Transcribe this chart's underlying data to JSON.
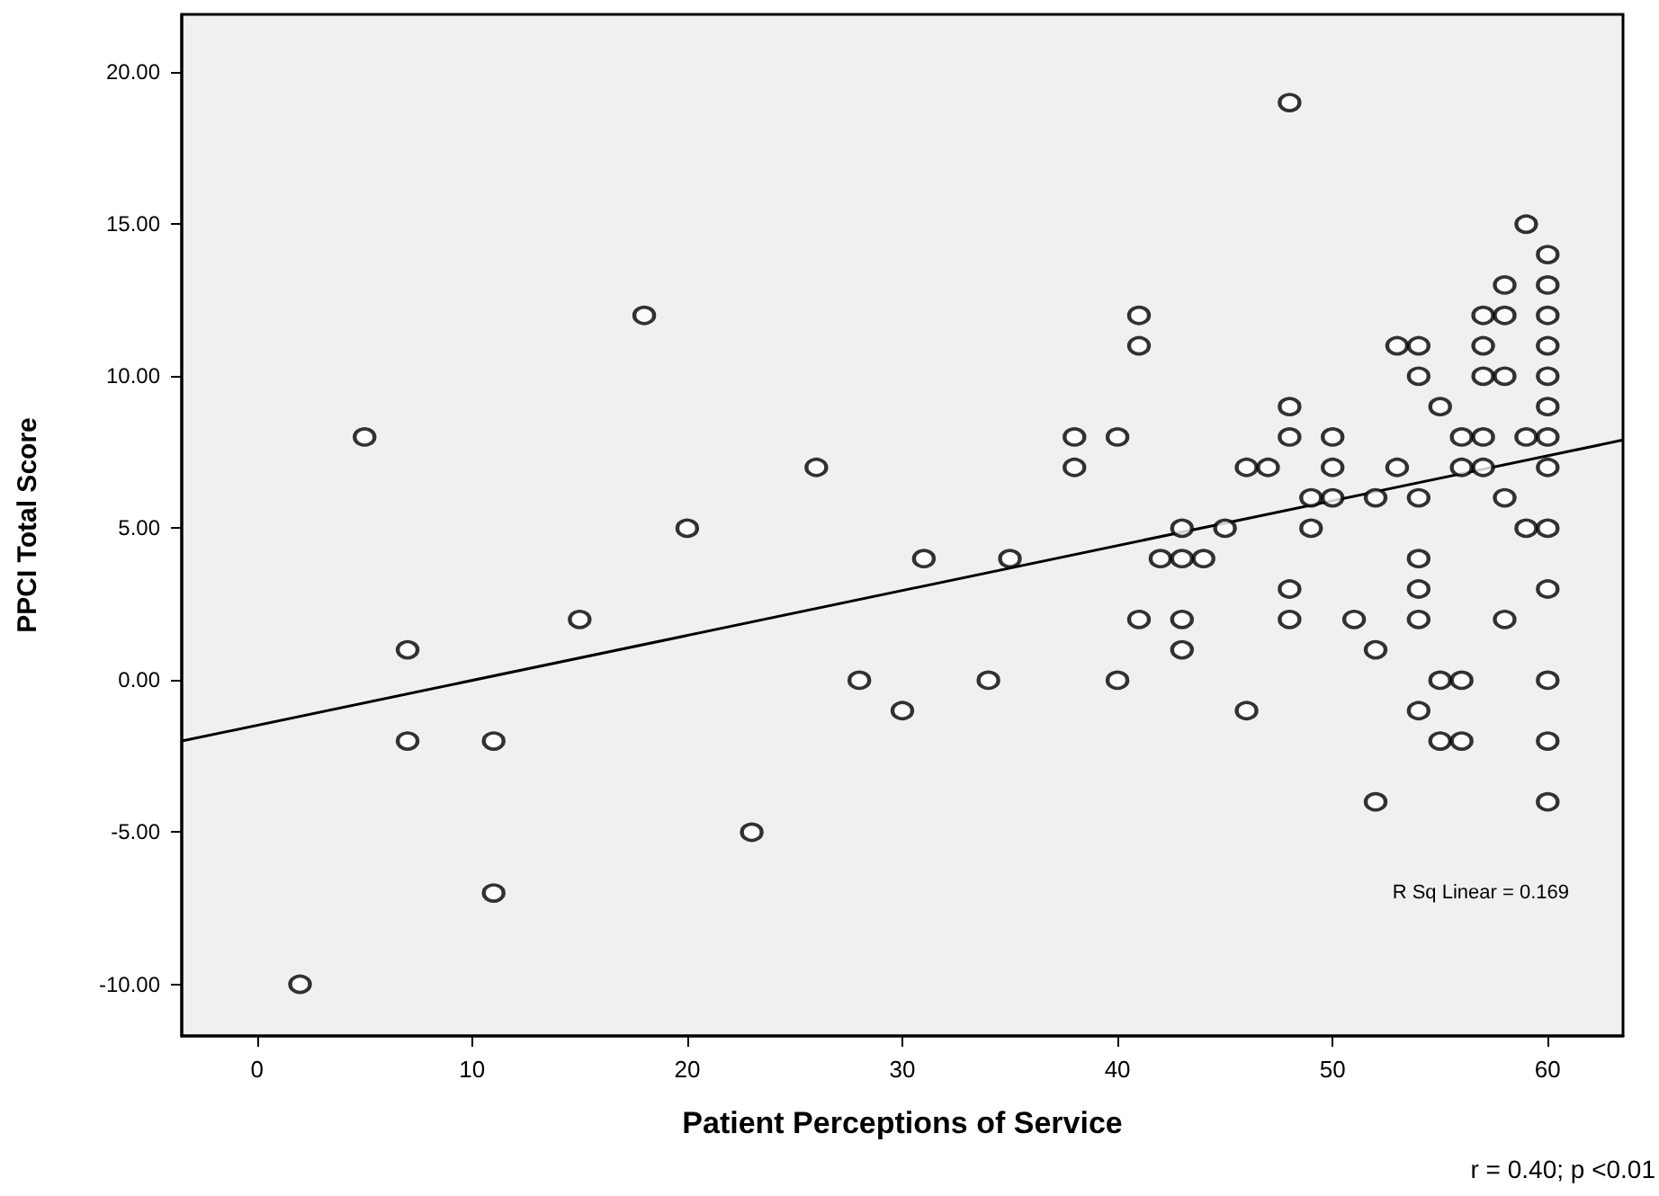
{
  "chart_data": {
    "type": "scatter",
    "xlabel": "Patient Perceptions of Service",
    "ylabel": "PPCI Total Score",
    "annotations": [
      "R Sq Linear = 0.169",
      "r = 0.40; p <0.01"
    ],
    "xlim": [
      -3.5,
      63.5
    ],
    "xticks": [
      0,
      10,
      20,
      30,
      40,
      50,
      60
    ],
    "ylim": [
      -11.7,
      21.9
    ],
    "yticks": [
      {
        "value": -10,
        "label": "-10.00"
      },
      {
        "value": -5,
        "label": "-5.00"
      },
      {
        "value": 0,
        "label": "0.00"
      },
      {
        "value": 5,
        "label": "5.00"
      },
      {
        "value": 10,
        "label": "10.00"
      },
      {
        "value": 15,
        "label": "15.00"
      },
      {
        "value": 20,
        "label": "20.00"
      }
    ],
    "grid": false,
    "marker": "circle",
    "series": [
      {
        "color": "#000000",
        "x": [
          2,
          5,
          7,
          7,
          11,
          11,
          15,
          18,
          20,
          23,
          26,
          28,
          30,
          31,
          34,
          35,
          38,
          38,
          40,
          40,
          41,
          41,
          41,
          42,
          43,
          43,
          43,
          43,
          44,
          45,
          46,
          46,
          47,
          48,
          48,
          48,
          48,
          48,
          49,
          49,
          50,
          50,
          50,
          51,
          52,
          52,
          52,
          53,
          53,
          54,
          54,
          54,
          54,
          54,
          54,
          54,
          55,
          55,
          55,
          56,
          56,
          56,
          56,
          57,
          57,
          57,
          57,
          57,
          58,
          58,
          58,
          58,
          58,
          59,
          59,
          59,
          60,
          60,
          60,
          60,
          60,
          60,
          60,
          60,
          60,
          60,
          60,
          60,
          60
        ],
        "values": [
          -10,
          8,
          1,
          -2,
          -2,
          -7,
          2,
          12,
          5,
          -5,
          7,
          0,
          -1,
          4,
          0,
          4,
          8,
          7,
          8,
          0,
          12,
          11,
          2,
          4,
          4,
          5,
          2,
          1,
          4,
          5,
          7,
          -1,
          7,
          19,
          9,
          8,
          3,
          2,
          6,
          5,
          8,
          7,
          6,
          2,
          6,
          1,
          -4,
          11,
          7,
          11,
          10,
          6,
          4,
          3,
          2,
          -1,
          9,
          0,
          -2,
          8,
          7,
          0,
          -2,
          12,
          11,
          10,
          8,
          7,
          13,
          12,
          10,
          6,
          2,
          15,
          8,
          5,
          14,
          13,
          12,
          11,
          10,
          9,
          8,
          7,
          5,
          3,
          0,
          -2,
          -4
        ]
      },
      {
        "type": "line",
        "color": "#000000",
        "marker": "none",
        "line_style": "solid",
        "x": [
          -3.5,
          63.5
        ],
        "values": [
          -2.0,
          7.9
        ]
      }
    ]
  }
}
